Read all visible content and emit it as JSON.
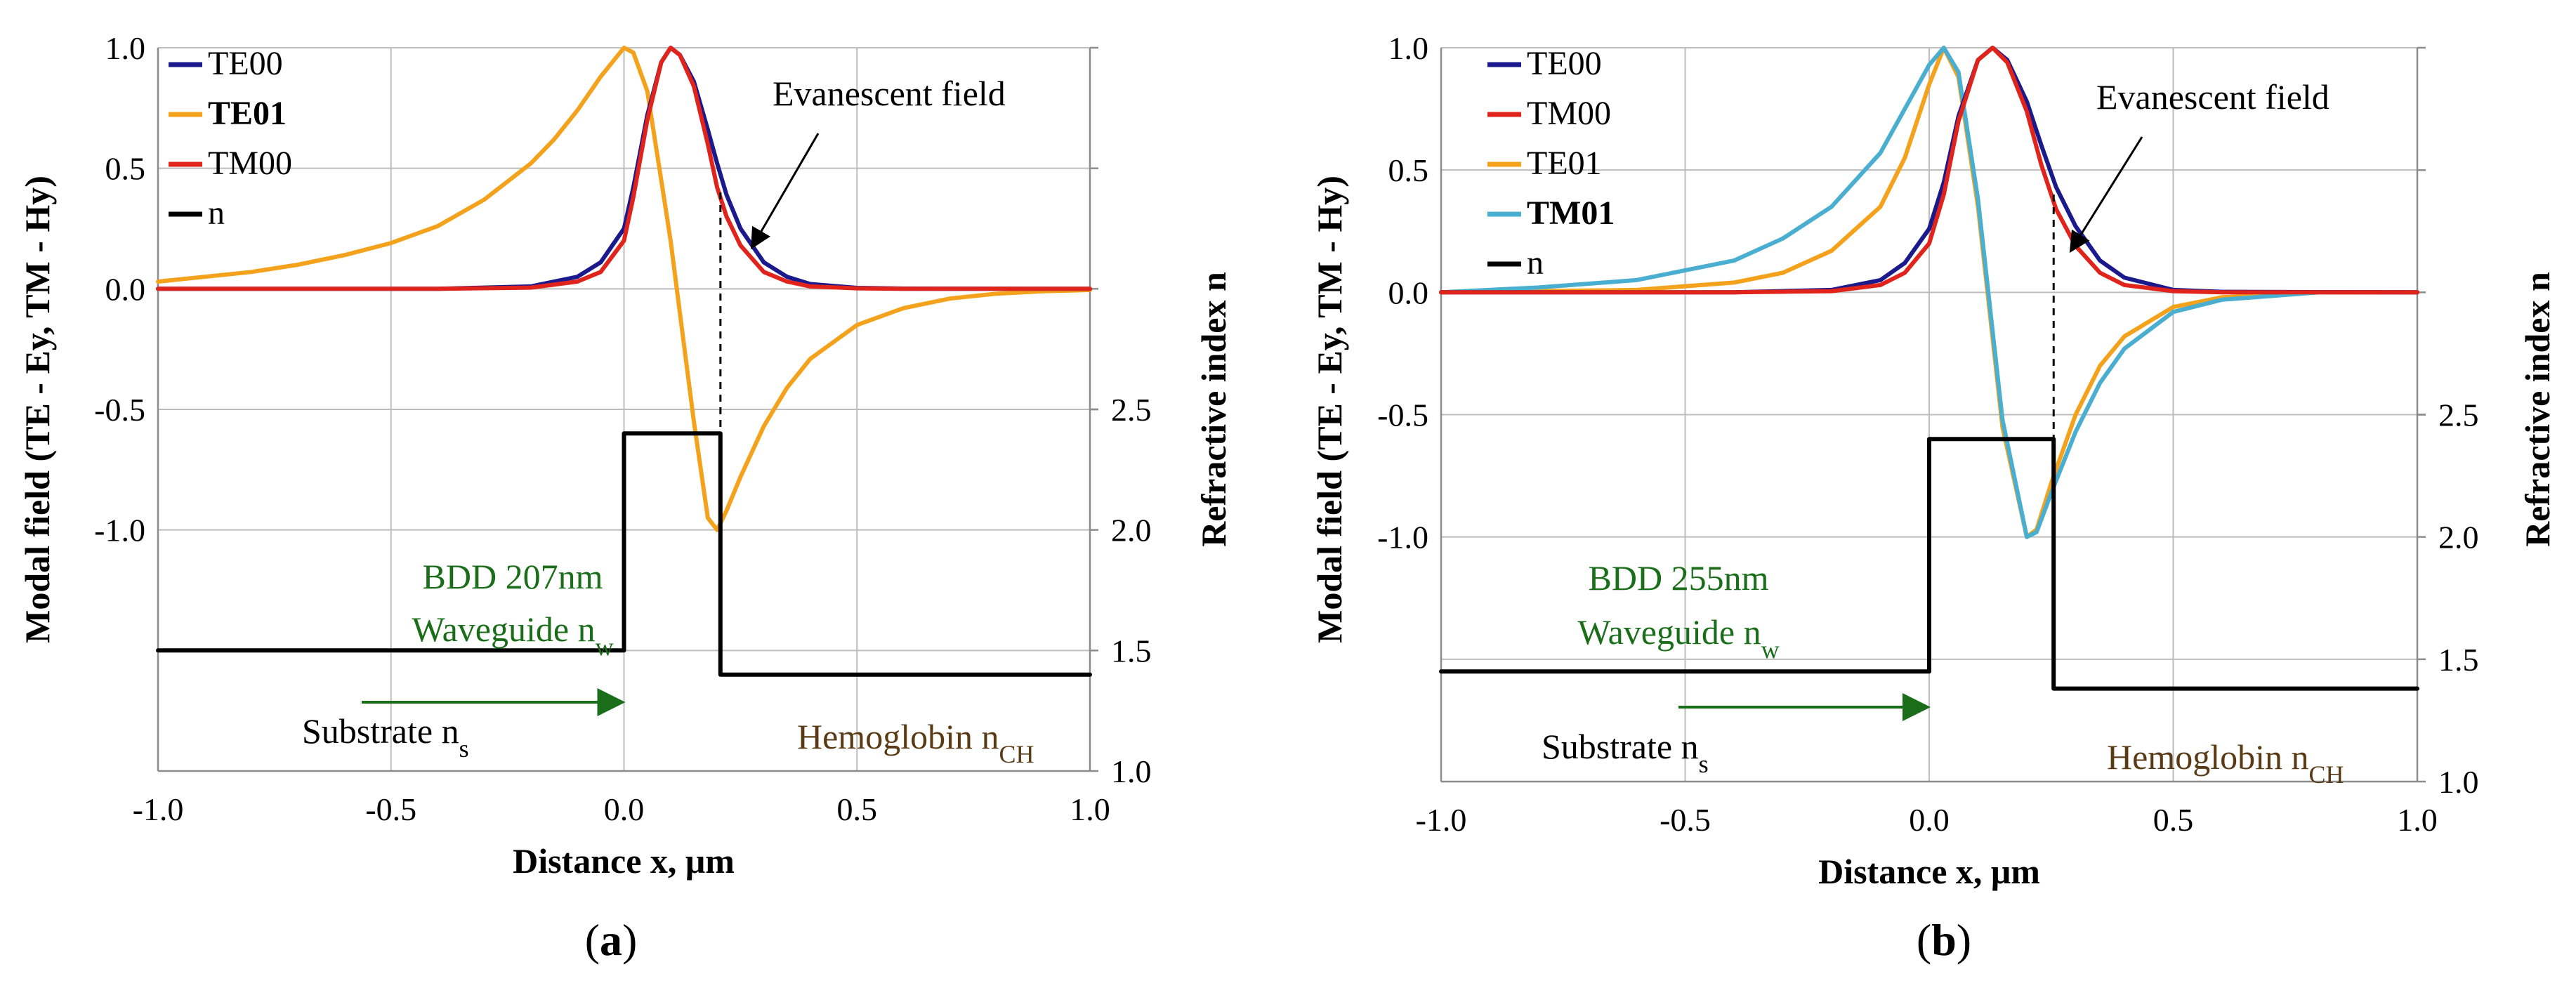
{
  "chart_data": [
    {
      "panel": "a",
      "type": "line",
      "caption_prefix": "(",
      "caption_letter": "a",
      "caption_suffix": ")",
      "xlabel": "Distance x, μm",
      "ylabel": "Modal field (TE - Ey, TM - Hy)",
      "y2label": "Refractive index n",
      "xlim": [
        -1.0,
        1.0
      ],
      "ylim": [
        -2.0,
        1.0
      ],
      "y2lim": [
        1.0,
        4.0
      ],
      "xticks": [
        "-1.0",
        "-0.5",
        "0.0",
        "0.5",
        "1.0"
      ],
      "xtick_values": [
        -1.0,
        -0.5,
        0.0,
        0.5,
        1.0
      ],
      "yticks": [
        "1.0",
        "0.5",
        "0.0",
        "-0.5",
        "-1.0"
      ],
      "ytick_values": [
        1.0,
        0.5,
        0.0,
        -0.5,
        -1.0
      ],
      "y2ticks": [
        "2.5",
        "2.0",
        "1.5",
        "1.0"
      ],
      "y2tick_values": [
        2.5,
        2.0,
        1.5,
        1.0
      ],
      "legend": [
        {
          "label": "TE00",
          "color": "#1a1a8c",
          "bold": false
        },
        {
          "label": "TE01",
          "color": "#f4a21b",
          "bold": true
        },
        {
          "label": "TM00",
          "color": "#e0241c",
          "bold": false
        },
        {
          "label": "n",
          "color": "#000000",
          "bold": false
        }
      ],
      "series": [
        {
          "name": "TE01",
          "color": "#f4a21b",
          "x": [
            -1.0,
            -0.9,
            -0.8,
            -0.7,
            -0.6,
            -0.5,
            -0.4,
            -0.3,
            -0.2,
            -0.15,
            -0.1,
            -0.05,
            0.0,
            0.02,
            0.05,
            0.08,
            0.1,
            0.12,
            0.15,
            0.18,
            0.2,
            0.22,
            0.25,
            0.3,
            0.35,
            0.4,
            0.5,
            0.6,
            0.7,
            0.8,
            0.9,
            1.0
          ],
          "values": [
            0.03,
            0.05,
            0.07,
            0.1,
            0.14,
            0.19,
            0.26,
            0.37,
            0.52,
            0.62,
            0.74,
            0.88,
            1.0,
            0.98,
            0.82,
            0.45,
            0.2,
            -0.1,
            -0.55,
            -0.95,
            -1.0,
            -0.92,
            -0.78,
            -0.57,
            -0.41,
            -0.29,
            -0.15,
            -0.08,
            -0.04,
            -0.02,
            -0.01,
            -0.005
          ]
        },
        {
          "name": "TE00",
          "color": "#1a1a8c",
          "x": [
            -1.0,
            -0.4,
            -0.2,
            -0.1,
            -0.05,
            0.0,
            0.02,
            0.05,
            0.08,
            0.1,
            0.12,
            0.15,
            0.18,
            0.2,
            0.22,
            0.25,
            0.3,
            0.35,
            0.4,
            0.5,
            0.6,
            1.0
          ],
          "values": [
            0.0,
            0.0,
            0.01,
            0.05,
            0.11,
            0.25,
            0.42,
            0.72,
            0.94,
            1.0,
            0.97,
            0.86,
            0.66,
            0.52,
            0.39,
            0.25,
            0.11,
            0.05,
            0.02,
            0.004,
            0.001,
            0.0
          ]
        },
        {
          "name": "TM00",
          "color": "#e0241c",
          "x": [
            -1.0,
            -0.4,
            -0.2,
            -0.1,
            -0.05,
            0.0,
            0.02,
            0.05,
            0.08,
            0.1,
            0.12,
            0.15,
            0.18,
            0.2,
            0.22,
            0.25,
            0.3,
            0.35,
            0.4,
            0.5,
            0.6,
            1.0
          ],
          "values": [
            0.0,
            0.0,
            0.005,
            0.03,
            0.07,
            0.2,
            0.38,
            0.7,
            0.94,
            1.0,
            0.97,
            0.84,
            0.6,
            0.42,
            0.3,
            0.18,
            0.07,
            0.03,
            0.01,
            0.002,
            0.0,
            0.0
          ]
        },
        {
          "name": "n",
          "color": "#000000",
          "axis": "right",
          "x": [
            -1.0,
            0.0,
            0.0,
            0.207,
            0.207,
            1.0
          ],
          "values": [
            1.5,
            1.5,
            2.4,
            2.4,
            1.4,
            1.4
          ]
        }
      ],
      "evanescent_marker_x": 0.207,
      "annotations": {
        "evanescent": "Evanescent field",
        "bdd": "BDD 207nm",
        "waveguide": "Waveguide n",
        "waveguide_sub": "w",
        "substrate": "Substrate n",
        "substrate_sub": "s",
        "hemoglobin": "Hemoglobin n",
        "hemoglobin_sub": "CH"
      },
      "colors": {
        "green": "#1a6e1a",
        "brown": "#5a3a14"
      }
    },
    {
      "panel": "b",
      "type": "line",
      "caption_prefix": "(",
      "caption_letter": "b",
      "caption_suffix": ")",
      "xlabel": "Distance x, μm",
      "ylabel": "Modal field (TE - Ey, TM - Hy)",
      "y2label": "Refractive index n",
      "xlim": [
        -1.0,
        1.0
      ],
      "ylim": [
        -2.0,
        1.0
      ],
      "y2lim": [
        1.0,
        4.0
      ],
      "xticks": [
        "-1.0",
        "-0.5",
        "0.0",
        "0.5",
        "1.0"
      ],
      "xtick_values": [
        -1.0,
        -0.5,
        0.0,
        0.5,
        1.0
      ],
      "yticks": [
        "1.0",
        "0.5",
        "0.0",
        "-0.5",
        "-1.0"
      ],
      "ytick_values": [
        1.0,
        0.5,
        0.0,
        -0.5,
        -1.0
      ],
      "y2ticks": [
        "2.5",
        "2.0",
        "1.5",
        "1.0"
      ],
      "y2tick_values": [
        2.5,
        2.0,
        1.5,
        1.0
      ],
      "legend": [
        {
          "label": "TE00",
          "color": "#1a1a8c",
          "bold": false
        },
        {
          "label": "TM00",
          "color": "#e0241c",
          "bold": false
        },
        {
          "label": "TE01",
          "color": "#f4a21b",
          "bold": false
        },
        {
          "label": "TM01",
          "color": "#4aaed0",
          "bold": true
        },
        {
          "label": "n",
          "color": "#000000",
          "bold": false
        }
      ],
      "series": [
        {
          "name": "TE01",
          "color": "#f4a21b",
          "x": [
            -1.0,
            -0.6,
            -0.4,
            -0.3,
            -0.2,
            -0.1,
            -0.05,
            0.0,
            0.03,
            0.06,
            0.1,
            0.15,
            0.2,
            0.22,
            0.25,
            0.3,
            0.35,
            0.4,
            0.5,
            0.6,
            0.8,
            1.0
          ],
          "values": [
            0.0,
            0.01,
            0.04,
            0.08,
            0.17,
            0.35,
            0.55,
            0.85,
            1.0,
            0.88,
            0.35,
            -0.55,
            -1.0,
            -0.97,
            -0.78,
            -0.5,
            -0.3,
            -0.18,
            -0.06,
            -0.02,
            0.0,
            0.0
          ]
        },
        {
          "name": "TM01",
          "color": "#4aaed0",
          "x": [
            -1.0,
            -0.8,
            -0.6,
            -0.4,
            -0.3,
            -0.2,
            -0.1,
            -0.05,
            0.0,
            0.03,
            0.06,
            0.1,
            0.15,
            0.2,
            0.22,
            0.25,
            0.3,
            0.35,
            0.4,
            0.5,
            0.6,
            0.8,
            1.0
          ],
          "values": [
            0.0,
            0.02,
            0.05,
            0.13,
            0.22,
            0.35,
            0.57,
            0.75,
            0.93,
            1.0,
            0.9,
            0.38,
            -0.52,
            -1.0,
            -0.98,
            -0.82,
            -0.57,
            -0.37,
            -0.23,
            -0.08,
            -0.03,
            0.0,
            0.0
          ]
        },
        {
          "name": "TE00",
          "color": "#1a1a8c",
          "x": [
            -1.0,
            -0.4,
            -0.2,
            -0.1,
            -0.05,
            0.0,
            0.03,
            0.06,
            0.1,
            0.13,
            0.16,
            0.2,
            0.23,
            0.26,
            0.3,
            0.35,
            0.4,
            0.5,
            0.6,
            1.0
          ],
          "values": [
            0.0,
            0.0,
            0.01,
            0.05,
            0.12,
            0.26,
            0.45,
            0.72,
            0.95,
            1.0,
            0.95,
            0.78,
            0.6,
            0.43,
            0.27,
            0.13,
            0.06,
            0.01,
            0.002,
            0.0
          ]
        },
        {
          "name": "TM00",
          "color": "#e0241c",
          "x": [
            -1.0,
            -0.4,
            -0.2,
            -0.1,
            -0.05,
            0.0,
            0.03,
            0.06,
            0.1,
            0.13,
            0.16,
            0.2,
            0.23,
            0.26,
            0.3,
            0.35,
            0.4,
            0.5,
            0.6,
            1.0
          ],
          "values": [
            0.0,
            0.0,
            0.005,
            0.03,
            0.08,
            0.2,
            0.4,
            0.7,
            0.95,
            1.0,
            0.94,
            0.74,
            0.52,
            0.34,
            0.19,
            0.08,
            0.03,
            0.005,
            0.0,
            0.0
          ]
        },
        {
          "name": "n",
          "color": "#000000",
          "axis": "right",
          "x": [
            -1.0,
            0.0,
            0.0,
            0.255,
            0.255,
            1.0
          ],
          "values": [
            1.45,
            1.45,
            2.4,
            2.4,
            1.38,
            1.38
          ]
        }
      ],
      "evanescent_marker_x": 0.255,
      "annotations": {
        "evanescent": "Evanescent field",
        "bdd": "BDD 255nm",
        "waveguide": "Waveguide n",
        "waveguide_sub": "w",
        "substrate": "Substrate n",
        "substrate_sub": "s",
        "hemoglobin": "Hemoglobin n",
        "hemoglobin_sub": "CH"
      },
      "colors": {
        "green": "#1a6e1a",
        "brown": "#5a3a14"
      }
    }
  ]
}
